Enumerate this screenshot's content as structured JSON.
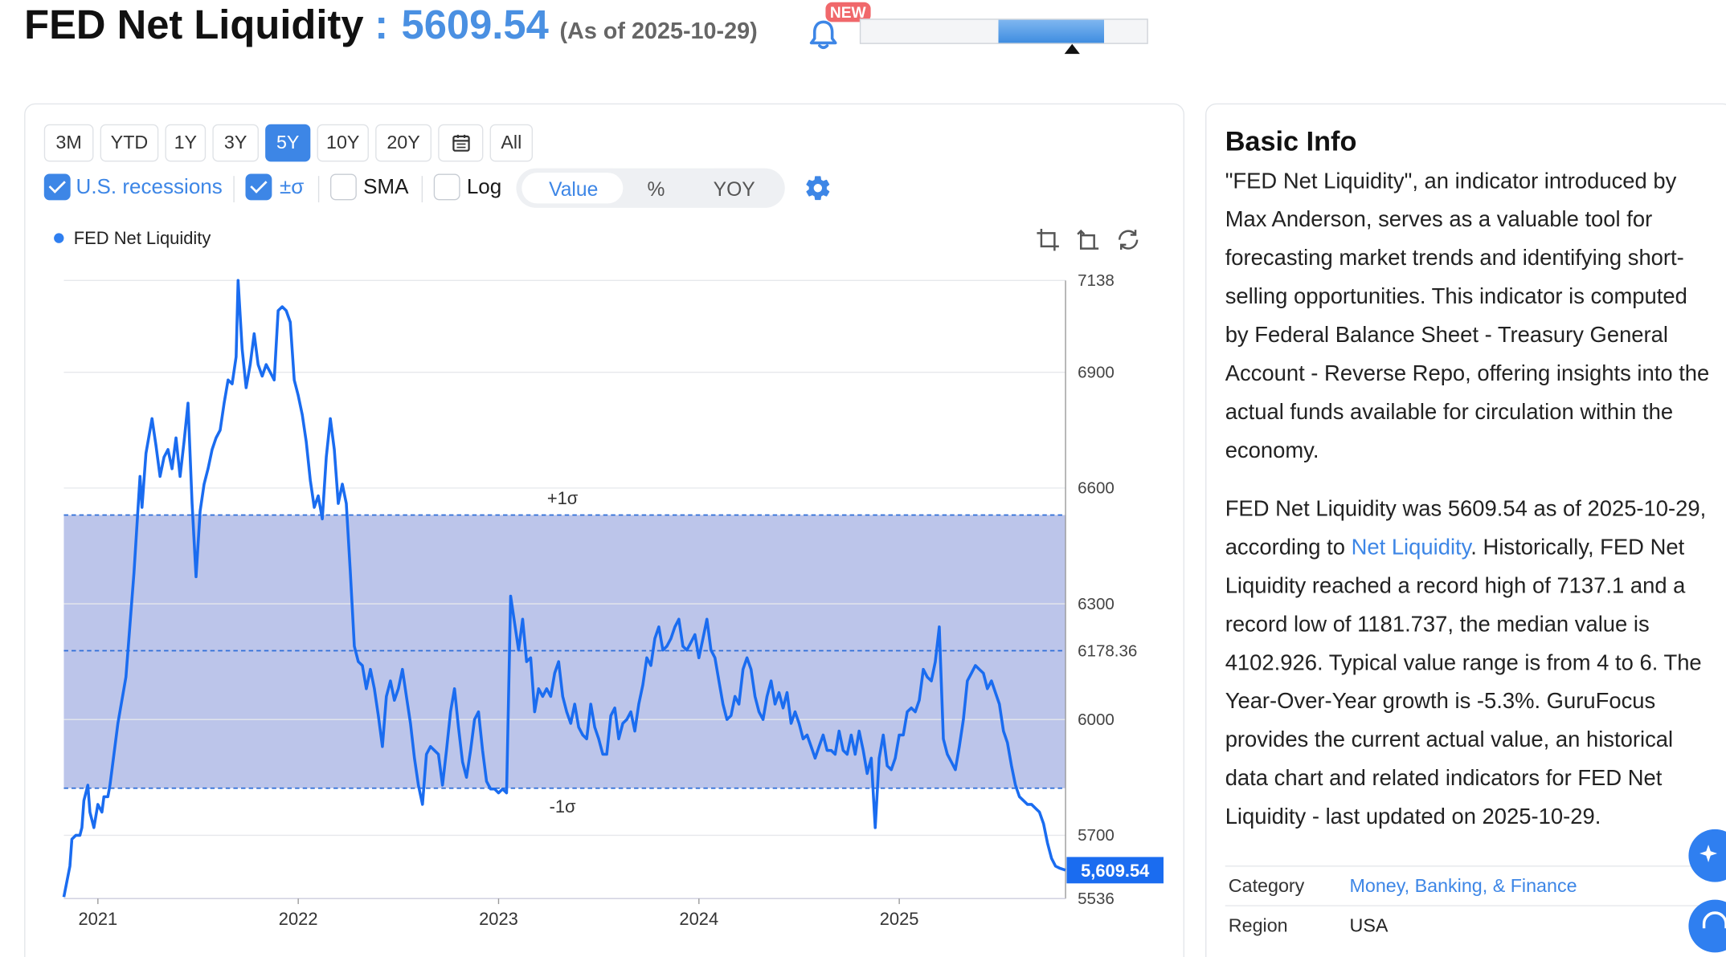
{
  "header": {
    "title": "FED Net Liquidity",
    "colon": ":",
    "value": "5609.54",
    "as_of": "(As of 2025-10-29)",
    "new_badge": "NEW",
    "gauge_fill_range": [
      0.48,
      0.85
    ],
    "gauge_pointer": 0.74
  },
  "toolbar": {
    "ranges": [
      "3M",
      "YTD",
      "1Y",
      "3Y",
      "5Y",
      "10Y",
      "20Y",
      "calendar-icon",
      "All"
    ],
    "active_range": "5Y",
    "checkboxes": [
      {
        "label": "U.S. recessions",
        "checked": true,
        "color": "#3d86e6"
      },
      {
        "label": "±σ",
        "checked": true,
        "color": "#3d86e6"
      },
      {
        "label": "SMA",
        "checked": false,
        "color": "#222222"
      },
      {
        "label": "Log",
        "checked": false,
        "color": "#222222"
      }
    ],
    "view_modes": [
      "Value",
      "%",
      "YOY"
    ],
    "active_view": "Value"
  },
  "chart_data": {
    "type": "line",
    "legend": [
      "FED Net Liquidity"
    ],
    "series_color": "#1a6cf0",
    "x_ticks": [
      "2021",
      "2022",
      "2023",
      "2024",
      "2025"
    ],
    "x_range": [
      2020.83,
      2025.83
    ],
    "y_ticks": [
      7138,
      6900,
      6600,
      6300,
      6178.36,
      6000,
      5700,
      5536
    ],
    "ylim": [
      5536,
      7138
    ],
    "mean": 6178.36,
    "mean_label": "6178.36",
    "plus_sigma": 6530,
    "minus_sigma": 5822,
    "plus_sigma_label": "+1σ",
    "minus_sigma_label": "-1σ",
    "last_value_label": "5,609.54",
    "points": [
      [
        2020.83,
        5540
      ],
      [
        2020.86,
        5620
      ],
      [
        2020.87,
        5690
      ],
      [
        2020.89,
        5700
      ],
      [
        2020.91,
        5700
      ],
      [
        2020.92,
        5720
      ],
      [
        2020.93,
        5790
      ],
      [
        2020.95,
        5830
      ],
      [
        2020.96,
        5760
      ],
      [
        2020.98,
        5720
      ],
      [
        2021.0,
        5780
      ],
      [
        2021.02,
        5760
      ],
      [
        2021.03,
        5800
      ],
      [
        2021.05,
        5800
      ],
      [
        2021.06,
        5830
      ],
      [
        2021.1,
        5990
      ],
      [
        2021.14,
        6110
      ],
      [
        2021.18,
        6380
      ],
      [
        2021.21,
        6630
      ],
      [
        2021.22,
        6550
      ],
      [
        2021.24,
        6690
      ],
      [
        2021.27,
        6780
      ],
      [
        2021.29,
        6710
      ],
      [
        2021.31,
        6630
      ],
      [
        2021.33,
        6680
      ],
      [
        2021.35,
        6700
      ],
      [
        2021.37,
        6650
      ],
      [
        2021.39,
        6730
      ],
      [
        2021.41,
        6630
      ],
      [
        2021.43,
        6720
      ],
      [
        2021.45,
        6820
      ],
      [
        2021.47,
        6560
      ],
      [
        2021.49,
        6370
      ],
      [
        2021.51,
        6540
      ],
      [
        2021.53,
        6610
      ],
      [
        2021.55,
        6650
      ],
      [
        2021.57,
        6700
      ],
      [
        2021.59,
        6730
      ],
      [
        2021.61,
        6750
      ],
      [
        2021.63,
        6820
      ],
      [
        2021.65,
        6880
      ],
      [
        2021.67,
        6870
      ],
      [
        2021.69,
        6940
      ],
      [
        2021.7,
        7138
      ],
      [
        2021.72,
        6960
      ],
      [
        2021.74,
        6860
      ],
      [
        2021.76,
        6920
      ],
      [
        2021.78,
        7000
      ],
      [
        2021.8,
        6920
      ],
      [
        2021.82,
        6890
      ],
      [
        2021.84,
        6920
      ],
      [
        2021.86,
        6900
      ],
      [
        2021.88,
        6880
      ],
      [
        2021.9,
        7060
      ],
      [
        2021.92,
        7070
      ],
      [
        2021.94,
        7060
      ],
      [
        2021.96,
        7030
      ],
      [
        2021.98,
        6880
      ],
      [
        2022.0,
        6840
      ],
      [
        2022.02,
        6790
      ],
      [
        2022.04,
        6720
      ],
      [
        2022.06,
        6620
      ],
      [
        2022.08,
        6550
      ],
      [
        2022.1,
        6580
      ],
      [
        2022.12,
        6520
      ],
      [
        2022.14,
        6680
      ],
      [
        2022.16,
        6780
      ],
      [
        2022.18,
        6700
      ],
      [
        2022.2,
        6560
      ],
      [
        2022.22,
        6610
      ],
      [
        2022.24,
        6560
      ],
      [
        2022.26,
        6380
      ],
      [
        2022.28,
        6190
      ],
      [
        2022.3,
        6150
      ],
      [
        2022.32,
        6140
      ],
      [
        2022.34,
        6080
      ],
      [
        2022.36,
        6130
      ],
      [
        2022.38,
        6080
      ],
      [
        2022.4,
        6010
      ],
      [
        2022.42,
        5930
      ],
      [
        2022.44,
        6060
      ],
      [
        2022.46,
        6100
      ],
      [
        2022.48,
        6050
      ],
      [
        2022.5,
        6080
      ],
      [
        2022.52,
        6130
      ],
      [
        2022.54,
        6060
      ],
      [
        2022.56,
        5990
      ],
      [
        2022.58,
        5900
      ],
      [
        2022.6,
        5830
      ],
      [
        2022.62,
        5780
      ],
      [
        2022.64,
        5910
      ],
      [
        2022.66,
        5930
      ],
      [
        2022.68,
        5920
      ],
      [
        2022.7,
        5910
      ],
      [
        2022.72,
        5830
      ],
      [
        2022.74,
        5920
      ],
      [
        2022.76,
        6020
      ],
      [
        2022.78,
        6080
      ],
      [
        2022.8,
        5980
      ],
      [
        2022.82,
        5890
      ],
      [
        2022.84,
        5850
      ],
      [
        2022.86,
        5920
      ],
      [
        2022.88,
        6000
      ],
      [
        2022.9,
        6020
      ],
      [
        2022.92,
        5920
      ],
      [
        2022.94,
        5840
      ],
      [
        2022.96,
        5820
      ],
      [
        2022.98,
        5820
      ],
      [
        2023.0,
        5810
      ],
      [
        2023.02,
        5820
      ],
      [
        2023.04,
        5810
      ],
      [
        2023.06,
        6320
      ],
      [
        2023.08,
        6250
      ],
      [
        2023.1,
        6180
      ],
      [
        2023.12,
        6260
      ],
      [
        2023.14,
        6150
      ],
      [
        2023.16,
        6160
      ],
      [
        2023.18,
        6020
      ],
      [
        2023.2,
        6080
      ],
      [
        2023.22,
        6060
      ],
      [
        2023.24,
        6080
      ],
      [
        2023.26,
        6060
      ],
      [
        2023.28,
        6120
      ],
      [
        2023.3,
        6150
      ],
      [
        2023.32,
        6060
      ],
      [
        2023.34,
        6020
      ],
      [
        2023.36,
        5990
      ],
      [
        2023.38,
        6040
      ],
      [
        2023.4,
        5980
      ],
      [
        2023.42,
        5960
      ],
      [
        2023.44,
        5950
      ],
      [
        2023.46,
        6040
      ],
      [
        2023.48,
        5980
      ],
      [
        2023.5,
        5950
      ],
      [
        2023.52,
        5910
      ],
      [
        2023.54,
        5910
      ],
      [
        2023.56,
        6010
      ],
      [
        2023.58,
        6030
      ],
      [
        2023.6,
        5950
      ],
      [
        2023.62,
        5990
      ],
      [
        2023.64,
        6000
      ],
      [
        2023.66,
        6020
      ],
      [
        2023.68,
        5970
      ],
      [
        2023.7,
        6040
      ],
      [
        2023.72,
        6090
      ],
      [
        2023.74,
        6160
      ],
      [
        2023.76,
        6140
      ],
      [
        2023.78,
        6210
      ],
      [
        2023.8,
        6240
      ],
      [
        2023.82,
        6180
      ],
      [
        2023.84,
        6190
      ],
      [
        2023.86,
        6210
      ],
      [
        2023.88,
        6240
      ],
      [
        2023.9,
        6260
      ],
      [
        2023.92,
        6190
      ],
      [
        2023.94,
        6180
      ],
      [
        2023.96,
        6200
      ],
      [
        2023.98,
        6220
      ],
      [
        2024.0,
        6160
      ],
      [
        2024.02,
        6210
      ],
      [
        2024.04,
        6260
      ],
      [
        2024.06,
        6180
      ],
      [
        2024.08,
        6160
      ],
      [
        2024.1,
        6100
      ],
      [
        2024.12,
        6040
      ],
      [
        2024.14,
        6000
      ],
      [
        2024.16,
        6010
      ],
      [
        2024.18,
        6060
      ],
      [
        2024.2,
        6040
      ],
      [
        2024.22,
        6130
      ],
      [
        2024.24,
        6160
      ],
      [
        2024.26,
        6130
      ],
      [
        2024.28,
        6060
      ],
      [
        2024.3,
        6020
      ],
      [
        2024.32,
        6000
      ],
      [
        2024.34,
        6060
      ],
      [
        2024.36,
        6100
      ],
      [
        2024.38,
        6040
      ],
      [
        2024.4,
        6070
      ],
      [
        2024.42,
        6030
      ],
      [
        2024.44,
        6070
      ],
      [
        2024.46,
        5990
      ],
      [
        2024.48,
        6020
      ],
      [
        2024.5,
        5990
      ],
      [
        2024.52,
        5950
      ],
      [
        2024.54,
        5960
      ],
      [
        2024.56,
        5930
      ],
      [
        2024.58,
        5900
      ],
      [
        2024.6,
        5930
      ],
      [
        2024.62,
        5960
      ],
      [
        2024.64,
        5920
      ],
      [
        2024.66,
        5920
      ],
      [
        2024.68,
        5910
      ],
      [
        2024.7,
        5970
      ],
      [
        2024.72,
        5920
      ],
      [
        2024.74,
        5910
      ],
      [
        2024.76,
        5960
      ],
      [
        2024.78,
        5910
      ],
      [
        2024.8,
        5970
      ],
      [
        2024.82,
        5920
      ],
      [
        2024.84,
        5860
      ],
      [
        2024.86,
        5900
      ],
      [
        2024.88,
        5720
      ],
      [
        2024.9,
        5900
      ],
      [
        2024.92,
        5960
      ],
      [
        2024.94,
        5880
      ],
      [
        2024.96,
        5870
      ],
      [
        2024.98,
        5900
      ],
      [
        2025.0,
        5960
      ],
      [
        2025.02,
        5960
      ],
      [
        2025.04,
        6020
      ],
      [
        2025.06,
        6030
      ],
      [
        2025.08,
        6020
      ],
      [
        2025.1,
        6050
      ],
      [
        2025.12,
        6130
      ],
      [
        2025.14,
        6110
      ],
      [
        2025.16,
        6100
      ],
      [
        2025.18,
        6150
      ],
      [
        2025.2,
        6240
      ],
      [
        2025.22,
        5950
      ],
      [
        2025.24,
        5910
      ],
      [
        2025.26,
        5890
      ],
      [
        2025.28,
        5870
      ],
      [
        2025.3,
        5930
      ],
      [
        2025.32,
        6000
      ],
      [
        2025.34,
        6100
      ],
      [
        2025.36,
        6120
      ],
      [
        2025.38,
        6140
      ],
      [
        2025.4,
        6130
      ],
      [
        2025.42,
        6120
      ],
      [
        2025.44,
        6080
      ],
      [
        2025.46,
        6100
      ],
      [
        2025.48,
        6070
      ],
      [
        2025.5,
        6040
      ],
      [
        2025.52,
        5970
      ],
      [
        2025.54,
        5940
      ],
      [
        2025.56,
        5880
      ],
      [
        2025.58,
        5830
      ],
      [
        2025.6,
        5800
      ],
      [
        2025.62,
        5790
      ],
      [
        2025.64,
        5780
      ],
      [
        2025.66,
        5780
      ],
      [
        2025.68,
        5770
      ],
      [
        2025.7,
        5760
      ],
      [
        2025.72,
        5730
      ],
      [
        2025.74,
        5680
      ],
      [
        2025.76,
        5640
      ],
      [
        2025.78,
        5620
      ],
      [
        2025.8,
        5615
      ],
      [
        2025.83,
        5609.54
      ]
    ]
  },
  "basic_info": {
    "heading": "Basic Info",
    "p1": "\"FED Net Liquidity\", an indicator introduced by Max Anderson, serves as a valuable tool for forecasting market trends and identifying short-selling opportunities. This indicator is computed by Federal Balance Sheet - Treasury General Account - Reverse Repo, offering insights into the actual funds available for circulation within the economy.",
    "p2_a": "FED Net Liquidity was 5609.54 as of 2025-10-29, according to ",
    "p2_link": "Net Liquidity",
    "p2_b": ". Historically, FED Net Liquidity reached a record high of 7137.1 and a record low of 1181.737, the median value is 4102.926. Typical value range is from 4 to 6. The Year-Over-Year growth is -5.3%. GuruFocus provides the current actual value, an historical data chart and related indicators for FED Net Liquidity - last updated on 2025-10-29.",
    "table": [
      {
        "key": "Category",
        "value": "Money, Banking, & Finance"
      },
      {
        "key": "Region",
        "value": "USA"
      }
    ]
  }
}
